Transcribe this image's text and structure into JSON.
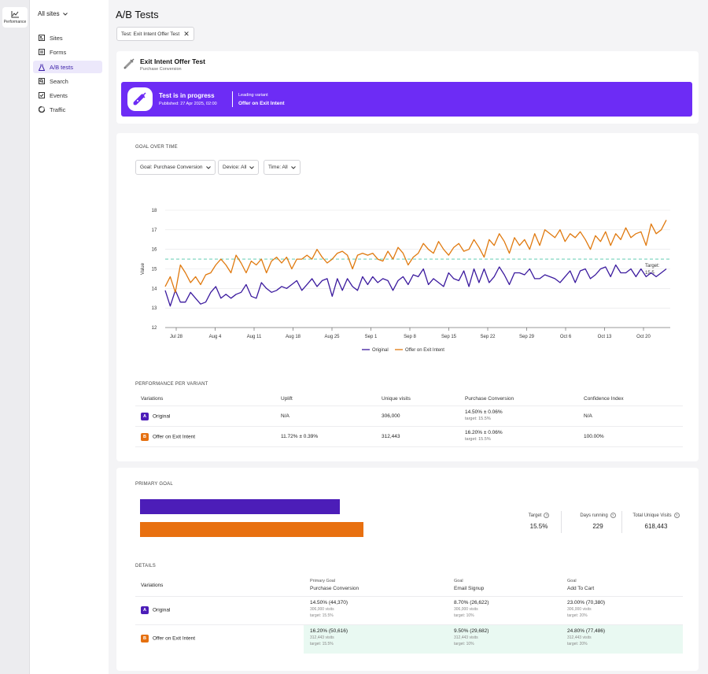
{
  "rail": {
    "label": "Performance",
    "icon": "performance-chart-icon"
  },
  "sidenav": {
    "site_select": "All sites",
    "items": [
      {
        "label": "Sites",
        "icon": "sites-icon"
      },
      {
        "label": "Forms",
        "icon": "forms-icon"
      },
      {
        "label": "A/B tests",
        "icon": "flask-icon",
        "active": true
      },
      {
        "label": "Search",
        "icon": "search-icon"
      },
      {
        "label": "Events",
        "icon": "events-icon"
      },
      {
        "label": "Traffic",
        "icon": "traffic-icon"
      }
    ]
  },
  "page": {
    "title": "A/B Tests",
    "filter_chip": {
      "key": "Test:",
      "value": "Exit Intent Offer Test"
    }
  },
  "test": {
    "name": "Exit Intent Offer Test",
    "goal": "Purchase Conversion",
    "status": "Test is in progress",
    "published": "Published: 27 Apr 2025, 02:00",
    "leading_label": "Leading variant",
    "leading_value": "Offer on Exit Intent"
  },
  "goal_over_time": {
    "label": "GOAL OVER TIME",
    "filters": [
      {
        "key": "Goal:",
        "value": "Purchase Conversion"
      },
      {
        "key": "Device:",
        "value": "All"
      },
      {
        "key": "Time:",
        "value": "All"
      }
    ]
  },
  "chart_data": {
    "type": "line",
    "title": "",
    "xlabel": "",
    "ylabel": "Value",
    "ylim": [
      12,
      18
    ],
    "yticks": [
      12,
      13,
      14,
      15,
      16,
      17,
      18
    ],
    "xticks": [
      "Jul 28",
      "Aug 4",
      "Aug 11",
      "Aug 18",
      "Aug 25",
      "Sep 1",
      "Sep 8",
      "Sep 15",
      "Sep 22",
      "Sep 29",
      "Oct 6",
      "Oct 13",
      "Oct 20"
    ],
    "target": {
      "value": 15.5,
      "label": "Target: 15.5"
    },
    "legend_position": "bottom",
    "grid": true,
    "series": [
      {
        "name": "Original",
        "color": "#3b1a9e",
        "values": [
          13.9,
          13.1,
          13.9,
          13.3,
          13.3,
          13.8,
          13.5,
          13.2,
          13.3,
          13.8,
          14.1,
          13.5,
          13.7,
          13.5,
          13.7,
          13.8,
          14.2,
          13.6,
          13.5,
          14.3,
          14.0,
          13.8,
          13.9,
          14.1,
          14.0,
          14.2,
          14.4,
          13.9,
          14.2,
          14.5,
          14.1,
          14.4,
          14.5,
          13.6,
          14.5,
          13.9,
          14.5,
          14.1,
          13.9,
          14.6,
          14.2,
          14.6,
          14.3,
          14.5,
          14.4,
          13.9,
          14.4,
          14.6,
          14.2,
          14.7,
          14.6,
          15.0,
          14.2,
          14.5,
          14.3,
          14.1,
          14.8,
          14.5,
          14.4,
          14.9,
          14.1,
          15.0,
          14.3,
          15.0,
          14.3,
          14.6,
          15.1,
          14.7,
          14.2,
          14.8,
          14.8,
          14.7,
          15.0,
          14.5,
          14.5,
          14.7,
          14.6,
          14.5,
          14.3,
          14.6,
          14.9,
          14.3,
          14.9,
          15.0,
          14.5,
          14.7,
          15.0,
          15.1,
          14.6,
          15.2,
          14.8,
          14.8,
          15.0,
          14.6,
          15.0,
          14.6,
          14.8,
          14.6,
          14.8,
          15.0
        ]
      },
      {
        "name": "Offer on Exit Intent",
        "color": "#e0790e",
        "values": [
          14.1,
          14.6,
          13.8,
          15.2,
          14.8,
          14.3,
          14.6,
          14.2,
          14.7,
          14.8,
          15.2,
          15.5,
          15.2,
          14.8,
          15.7,
          15.3,
          14.8,
          15.4,
          15.2,
          15.5,
          14.8,
          15.4,
          15.6,
          15.3,
          15.6,
          15.0,
          15.5,
          15.5,
          15.7,
          15.5,
          16.0,
          15.6,
          15.3,
          15.5,
          15.8,
          15.9,
          15.7,
          15.0,
          15.7,
          15.8,
          15.7,
          15.8,
          15.5,
          15.4,
          15.9,
          15.5,
          16.1,
          15.8,
          15.2,
          15.6,
          15.8,
          16.3,
          16.0,
          15.8,
          16.4,
          16.0,
          15.7,
          16.1,
          16.3,
          15.9,
          16.0,
          16.5,
          16.1,
          15.6,
          16.5,
          16.2,
          16.8,
          16.4,
          15.8,
          16.6,
          16.2,
          16.5,
          16.0,
          16.8,
          16.2,
          17.0,
          16.8,
          16.6,
          17.0,
          16.4,
          16.8,
          16.6,
          16.9,
          16.5,
          16.0,
          16.7,
          16.4,
          16.9,
          16.2,
          16.8,
          16.5,
          17.1,
          16.6,
          16.8,
          16.9,
          16.2,
          17.3,
          16.8,
          17.0,
          17.5
        ]
      }
    ]
  },
  "performance": {
    "label": "PERFORMANCE PER VARIANT",
    "headers": [
      "Variations",
      "Uplift",
      "Unique visits",
      "Purchase Conversion",
      "Confidence Index"
    ],
    "rows": [
      {
        "badge": "A",
        "name": "Original",
        "uplift": "N/A",
        "visits": "306,000",
        "conversion": "14.50% ± 0.06%",
        "target": "target: 15.5%",
        "confidence": "N/A"
      },
      {
        "badge": "B",
        "name": "Offer on Exit Intent",
        "uplift": "11.72% ± 0.39%",
        "visits": "312,443",
        "conversion": "16.20% ± 0.06%",
        "target": "target: 15.5%",
        "confidence": "100.00%"
      }
    ]
  },
  "primary_goal": {
    "label": "PRIMARY GOAL",
    "bars": [
      {
        "variant": "Original",
        "value_pct": 14.5,
        "color": "#4c1db8"
      },
      {
        "variant": "Offer on Exit Intent",
        "value_pct": 16.2,
        "color": "#e87010"
      }
    ],
    "stats": [
      {
        "label": "Target",
        "value": "15.5%"
      },
      {
        "label": "Days running",
        "value": "229"
      },
      {
        "label": "Total Unique Visits",
        "value": "618,443"
      }
    ]
  },
  "details": {
    "label": "DETAILS",
    "variations_header": "Variations",
    "columns": [
      {
        "small": "Primary Goal",
        "big": "Purchase Conversion"
      },
      {
        "small": "Goal",
        "big": "Email Signup"
      },
      {
        "small": "Goal",
        "big": "Add To Cart"
      }
    ],
    "rows": [
      {
        "badge": "A",
        "name": "Original",
        "cells": [
          {
            "main": "14.50% (44,370)",
            "visits": "306,000 visits",
            "target": "target: 15.5%"
          },
          {
            "main": "8.70% (26,622)",
            "visits": "306,000 visits",
            "target": "target: 10%"
          },
          {
            "main": "23.00% (70,380)",
            "visits": "306,000 visits",
            "target": "target: 20%"
          }
        ]
      },
      {
        "badge": "B",
        "name": "Offer on Exit Intent",
        "cells": [
          {
            "main": "16.20% (50,616)",
            "visits": "312,443 visits",
            "target": "target: 15.5%"
          },
          {
            "main": "9.50% (29,682)",
            "visits": "312,443 visits",
            "target": "target: 10%"
          },
          {
            "main": "24.80% (77,486)",
            "visits": "312,443 visits",
            "target": "target: 20%"
          }
        ]
      }
    ]
  }
}
